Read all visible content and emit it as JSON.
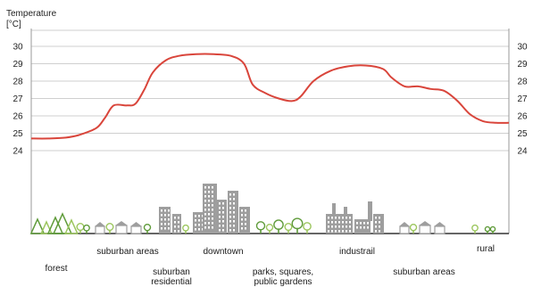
{
  "chart_data": {
    "type": "line",
    "title": "",
    "ylabel": "Temperature",
    "yunit": "[°C]",
    "ylim": [
      24,
      30
    ],
    "yticks": [
      24,
      25,
      26,
      27,
      28,
      29,
      30
    ],
    "y_right_axis": true,
    "grid": true,
    "line_color": "#d9453b",
    "series": [
      {
        "values": [
          [
            0,
            24.7
          ],
          [
            4,
            24.7
          ],
          [
            8,
            24.75
          ],
          [
            11,
            24.9
          ],
          [
            15,
            25.3
          ],
          [
            17,
            25.9
          ],
          [
            19,
            26.6
          ],
          [
            22,
            26.6
          ],
          [
            24,
            26.7
          ],
          [
            26,
            27.5
          ],
          [
            28,
            28.5
          ],
          [
            31,
            29.2
          ],
          [
            34,
            29.45
          ],
          [
            38,
            29.55
          ],
          [
            42,
            29.55
          ],
          [
            46,
            29.45
          ],
          [
            49,
            29.0
          ],
          [
            51,
            27.8
          ],
          [
            54,
            27.3
          ],
          [
            57,
            27.0
          ],
          [
            60,
            26.85
          ],
          [
            62,
            27.1
          ],
          [
            65,
            28.0
          ],
          [
            69,
            28.6
          ],
          [
            73,
            28.85
          ],
          [
            77,
            28.9
          ],
          [
            81,
            28.7
          ],
          [
            83,
            28.2
          ],
          [
            86,
            27.7
          ],
          [
            89,
            27.7
          ],
          [
            92,
            27.55
          ],
          [
            95,
            27.45
          ],
          [
            98,
            26.9
          ],
          [
            101,
            26.1
          ],
          [
            104,
            25.7
          ],
          [
            107,
            25.6
          ],
          [
            110,
            25.6
          ]
        ]
      }
    ],
    "zones": [
      {
        "label": "forest",
        "icon": "tree-icon",
        "from": 0,
        "to": 13
      },
      {
        "label": "suburban areas",
        "icon": "house-icon",
        "from": 13,
        "to": 26
      },
      {
        "label": "suburban\nresidential",
        "icon": "building-icon",
        "from": 26,
        "to": 34
      },
      {
        "label": "downtown",
        "icon": "skyscraper-icon",
        "from": 34,
        "to": 47
      },
      {
        "label": "parks, squares,\npublic gardens",
        "icon": "tree-icon",
        "from": 47,
        "to": 61
      },
      {
        "label": "industrail",
        "icon": "factory-icon",
        "from": 61,
        "to": 79
      },
      {
        "label": "suburban areas",
        "icon": "house-icon",
        "from": 79,
        "to": 95
      },
      {
        "label": "rural",
        "icon": "tree-icon",
        "from": 95,
        "to": 110
      }
    ],
    "colors": {
      "tree_dark": "#5f9b3a",
      "tree_light": "#9cc65e",
      "building": "#9e9e9e",
      "ground": "#333333"
    }
  }
}
